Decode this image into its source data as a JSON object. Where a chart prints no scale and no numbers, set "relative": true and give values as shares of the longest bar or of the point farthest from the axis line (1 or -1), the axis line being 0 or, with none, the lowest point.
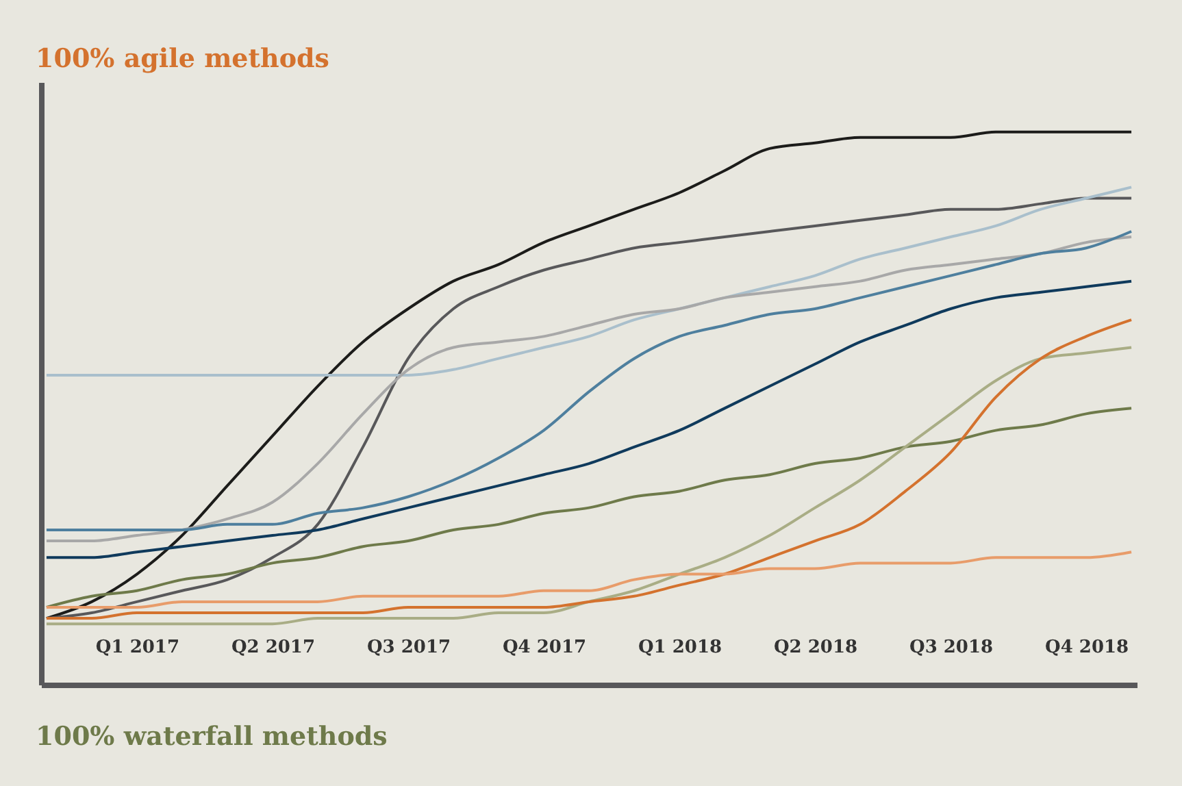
{
  "chart_data": {
    "type": "line",
    "relative": true,
    "annotations": [
      "100% agile methods",
      "100% waterfall methods"
    ],
    "categories": [
      null,
      null,
      "Q1 2017",
      null,
      null,
      "Q2 2017",
      null,
      null,
      "Q3 2017",
      null,
      null,
      "Q4 2017",
      null,
      null,
      "Q1 2018",
      null,
      null,
      "Q2 2018",
      null,
      null,
      "Q3 2018",
      null,
      null,
      "Q4 2018",
      null
    ],
    "grid": false,
    "legend": false,
    "marker": "none",
    "line_style": "solid",
    "series": [
      {
        "color": "#1c1c1a",
        "values": [
          0.12,
          0.15,
          0.2,
          0.27,
          0.36,
          0.45,
          0.54,
          0.62,
          0.68,
          0.73,
          0.76,
          0.8,
          0.83,
          0.86,
          0.89,
          0.93,
          0.97,
          0.98,
          0.99,
          0.99,
          0.99,
          1.0,
          1.0,
          1.0,
          1.0
        ]
      },
      {
        "color": "#58585a",
        "values": [
          0.12,
          0.13,
          0.15,
          0.17,
          0.19,
          0.23,
          0.29,
          0.43,
          0.59,
          0.68,
          0.72,
          0.75,
          0.77,
          0.79,
          0.8,
          0.81,
          0.82,
          0.83,
          0.84,
          0.85,
          0.86,
          0.86,
          0.87,
          0.88,
          0.88
        ]
      },
      {
        "color": "#a9bfcc",
        "values": [
          0.56,
          0.56,
          0.56,
          0.56,
          0.56,
          0.56,
          0.56,
          0.56,
          0.56,
          0.57,
          0.59,
          0.61,
          0.63,
          0.66,
          0.68,
          0.7,
          0.72,
          0.74,
          0.77,
          0.79,
          0.81,
          0.83,
          0.86,
          0.88,
          0.9
        ]
      },
      {
        "color": "#a8a8a8",
        "values": [
          0.26,
          0.26,
          0.27,
          0.28,
          0.3,
          0.33,
          0.4,
          0.49,
          0.57,
          0.61,
          0.62,
          0.63,
          0.65,
          0.67,
          0.68,
          0.7,
          0.71,
          0.72,
          0.73,
          0.75,
          0.76,
          0.77,
          0.78,
          0.8,
          0.81
        ]
      },
      {
        "color": "#4e7f9e",
        "values": [
          0.28,
          0.28,
          0.28,
          0.28,
          0.29,
          0.29,
          0.31,
          0.32,
          0.34,
          0.37,
          0.41,
          0.46,
          0.53,
          0.59,
          0.63,
          0.65,
          0.67,
          0.68,
          0.7,
          0.72,
          0.74,
          0.76,
          0.78,
          0.79,
          0.82
        ]
      },
      {
        "color": "#0f3a5c",
        "values": [
          0.23,
          0.23,
          0.24,
          0.25,
          0.26,
          0.27,
          0.28,
          0.3,
          0.32,
          0.34,
          0.36,
          0.38,
          0.4,
          0.43,
          0.46,
          0.5,
          0.54,
          0.58,
          0.62,
          0.65,
          0.68,
          0.7,
          0.71,
          0.72,
          0.73
        ]
      },
      {
        "color": "#6e7a4a",
        "values": [
          0.14,
          0.16,
          0.17,
          0.19,
          0.2,
          0.22,
          0.23,
          0.25,
          0.26,
          0.28,
          0.29,
          0.31,
          0.32,
          0.34,
          0.35,
          0.37,
          0.38,
          0.4,
          0.41,
          0.43,
          0.44,
          0.46,
          0.47,
          0.49,
          0.5
        ]
      },
      {
        "color": "#a9ad85",
        "values": [
          0.11,
          0.11,
          0.11,
          0.11,
          0.11,
          0.11,
          0.12,
          0.12,
          0.12,
          0.12,
          0.13,
          0.13,
          0.15,
          0.17,
          0.2,
          0.23,
          0.27,
          0.32,
          0.37,
          0.43,
          0.49,
          0.55,
          0.59,
          0.6,
          0.61
        ]
      },
      {
        "color": "#d4722e",
        "values": [
          0.12,
          0.12,
          0.13,
          0.13,
          0.13,
          0.13,
          0.13,
          0.13,
          0.14,
          0.14,
          0.14,
          0.14,
          0.15,
          0.16,
          0.18,
          0.2,
          0.23,
          0.26,
          0.29,
          0.35,
          0.42,
          0.52,
          0.59,
          0.63,
          0.66
        ]
      },
      {
        "color": "#e89c6a",
        "values": [
          0.14,
          0.14,
          0.14,
          0.15,
          0.15,
          0.15,
          0.15,
          0.16,
          0.16,
          0.16,
          0.16,
          0.17,
          0.17,
          0.19,
          0.2,
          0.2,
          0.21,
          0.21,
          0.22,
          0.22,
          0.22,
          0.23,
          0.23,
          0.23,
          0.24
        ]
      }
    ]
  }
}
